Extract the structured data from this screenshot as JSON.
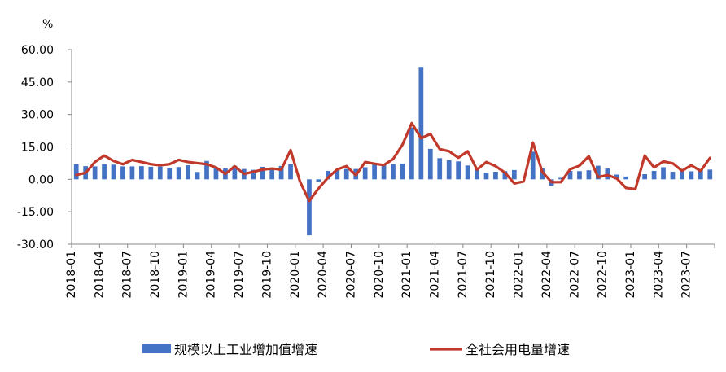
{
  "chart_data": {
    "type": "bar",
    "unit_label": "%",
    "ylim": [
      -30,
      60
    ],
    "yticks": [
      60,
      45,
      30,
      15,
      0,
      -15,
      -30
    ],
    "ytick_labels": [
      "60.00",
      "45.00",
      "30.00",
      "15.00",
      "0.00",
      "-15.00",
      "-30.00"
    ],
    "grid": false,
    "legend_position": "bottom",
    "x": [
      "2018-01",
      "2018-02",
      "2018-03",
      "2018-04",
      "2018-05",
      "2018-06",
      "2018-07",
      "2018-08",
      "2018-09",
      "2018-10",
      "2018-11",
      "2018-12",
      "2019-01",
      "2019-02",
      "2019-03",
      "2019-04",
      "2019-05",
      "2019-06",
      "2019-07",
      "2019-08",
      "2019-09",
      "2019-10",
      "2019-11",
      "2019-12",
      "2020-01",
      "2020-02",
      "2020-03",
      "2020-04",
      "2020-05",
      "2020-06",
      "2020-07",
      "2020-08",
      "2020-09",
      "2020-10",
      "2020-11",
      "2020-12",
      "2021-01",
      "2021-02",
      "2021-03",
      "2021-04",
      "2021-05",
      "2021-06",
      "2021-07",
      "2021-08",
      "2021-09",
      "2021-10",
      "2021-11",
      "2021-12",
      "2022-01",
      "2022-02",
      "2022-03",
      "2022-04",
      "2022-05",
      "2022-06",
      "2022-07",
      "2022-08",
      "2022-09",
      "2022-10",
      "2022-11",
      "2022-12",
      "2023-01",
      "2023-02",
      "2023-03",
      "2023-04",
      "2023-05",
      "2023-06",
      "2023-07",
      "2023-08",
      "2023-09"
    ],
    "x_tick_labels": [
      "2018-01",
      "2018-04",
      "2018-07",
      "2018-10",
      "2019-01",
      "2019-04",
      "2019-07",
      "2019-10",
      "2020-01",
      "2020-04",
      "2020-07",
      "2020-10",
      "2021-01",
      "2021-04",
      "2021-07",
      "2021-10",
      "2022-01",
      "2022-04",
      "2022-07",
      "2022-10",
      "2023-01",
      "2023-04",
      "2023-07"
    ],
    "series": [
      {
        "name": "规模以上工业增加值增速",
        "kind": "bar",
        "color": "#4472C4",
        "values": [
          7.0,
          6.1,
          6.0,
          7.0,
          6.8,
          6.0,
          6.0,
          6.1,
          5.8,
          5.9,
          5.4,
          5.7,
          6.5,
          3.4,
          8.5,
          5.4,
          5.0,
          6.3,
          4.8,
          4.4,
          5.8,
          4.7,
          6.2,
          6.9,
          0.0,
          -25.9,
          -1.1,
          3.9,
          4.4,
          4.8,
          4.8,
          5.6,
          6.9,
          6.9,
          7.0,
          7.3,
          24.0,
          52.0,
          14.1,
          9.8,
          8.8,
          8.3,
          6.4,
          5.3,
          3.1,
          3.5,
          3.8,
          4.3,
          0.0,
          12.8,
          5.0,
          -2.9,
          0.7,
          3.9,
          3.8,
          4.2,
          6.3,
          5.0,
          2.2,
          1.3,
          0.0,
          2.4,
          3.9,
          5.6,
          3.5,
          4.4,
          3.7,
          4.5,
          4.5
        ]
      },
      {
        "name": "全社会用电量增速",
        "kind": "line",
        "color": "#C0392B",
        "values": [
          2.0,
          3.0,
          8.0,
          11.0,
          8.5,
          7.0,
          9.0,
          8.0,
          7.0,
          6.5,
          7.0,
          9.0,
          8.0,
          7.5,
          7.0,
          5.5,
          2.5,
          6.0,
          2.5,
          3.5,
          4.5,
          5.0,
          4.5,
          13.5,
          -1.0,
          -10.0,
          -4.2,
          0.7,
          4.6,
          6.1,
          1.9,
          8.0,
          7.2,
          6.6,
          9.4,
          16.0,
          26.0,
          19.0,
          21.0,
          14.0,
          13.0,
          10.0,
          13.0,
          4.5,
          8.0,
          6.1,
          3.1,
          -1.9,
          -1.0,
          17.0,
          3.5,
          -1.3,
          -1.3,
          4.7,
          6.3,
          10.7,
          1.0,
          2.0,
          0.4,
          -4.0,
          -4.5,
          11.0,
          5.5,
          8.3,
          7.4,
          4.0,
          6.5,
          3.9,
          9.9
        ]
      }
    ]
  }
}
